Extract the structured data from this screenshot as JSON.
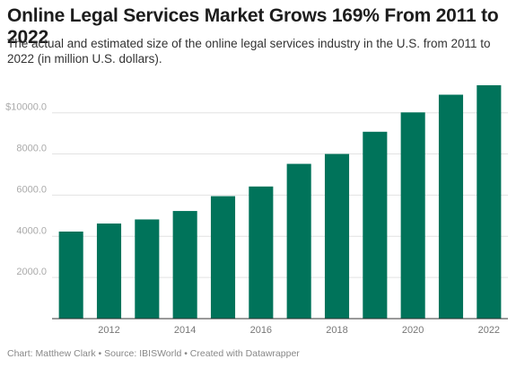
{
  "header": {
    "title": "Online Legal Services Market Grows 169% From 2011 to 2022",
    "subtitle": "The actual and estimated size of the online legal services industry in the U.S. from 2011 to 2022 (in million U.S. dollars)."
  },
  "footer": {
    "credit": "Chart: Matthew Clark • Source: IBISWorld • Created with Datawrapper"
  },
  "chart_data": {
    "type": "bar",
    "categories": [
      "2011",
      "2012",
      "2013",
      "2014",
      "2015",
      "2016",
      "2017",
      "2018",
      "2019",
      "2020",
      "2021",
      "2022"
    ],
    "values": [
      4230,
      4620,
      4820,
      5230,
      5950,
      6420,
      7520,
      8000,
      9080,
      10020,
      10880,
      11340
    ],
    "xticks": [
      "2012",
      "2014",
      "2016",
      "2018",
      "2020",
      "2022"
    ],
    "yticks": [
      2000,
      4000,
      6000,
      8000,
      10000
    ],
    "ytick_labels": [
      "2000.0",
      "4000.0",
      "6000.0",
      "8000.0",
      "$10000.0"
    ],
    "ylim": [
      0,
      11600
    ],
    "grid": true,
    "bar_color": "#00735a"
  }
}
